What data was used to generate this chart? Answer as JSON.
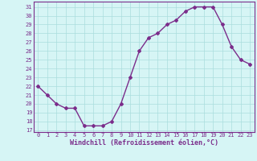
{
  "x": [
    0,
    1,
    2,
    3,
    4,
    5,
    6,
    7,
    8,
    9,
    10,
    11,
    12,
    13,
    14,
    15,
    16,
    17,
    18,
    19,
    20,
    21,
    22,
    23
  ],
  "y": [
    22,
    21,
    20,
    19.5,
    19.5,
    17.5,
    17.5,
    17.5,
    18,
    20,
    23,
    26,
    27.5,
    28,
    29,
    29.5,
    30.5,
    31,
    31,
    31,
    29,
    26.5,
    25,
    24.5
  ],
  "line_color": "#7b2d8b",
  "marker": "D",
  "marker_size": 2,
  "bg_color": "#d6f5f5",
  "grid_color": "#aadddd",
  "xlabel": "Windchill (Refroidissement éolien,°C)",
  "xlabel_color": "#7b2d8b",
  "xlabel_fontsize": 6,
  "yticks": [
    17,
    18,
    19,
    20,
    21,
    22,
    23,
    24,
    25,
    26,
    27,
    28,
    29,
    30,
    31
  ],
  "xticks": [
    0,
    1,
    2,
    3,
    4,
    5,
    6,
    7,
    8,
    9,
    10,
    11,
    12,
    13,
    14,
    15,
    16,
    17,
    18,
    19,
    20,
    21,
    22,
    23
  ],
  "ylim": [
    16.8,
    31.6
  ],
  "xlim": [
    -0.5,
    23.5
  ],
  "tick_color": "#7b2d8b",
  "tick_fontsize": 5,
  "line_width": 1.0,
  "spine_color": "#7b2d8b"
}
